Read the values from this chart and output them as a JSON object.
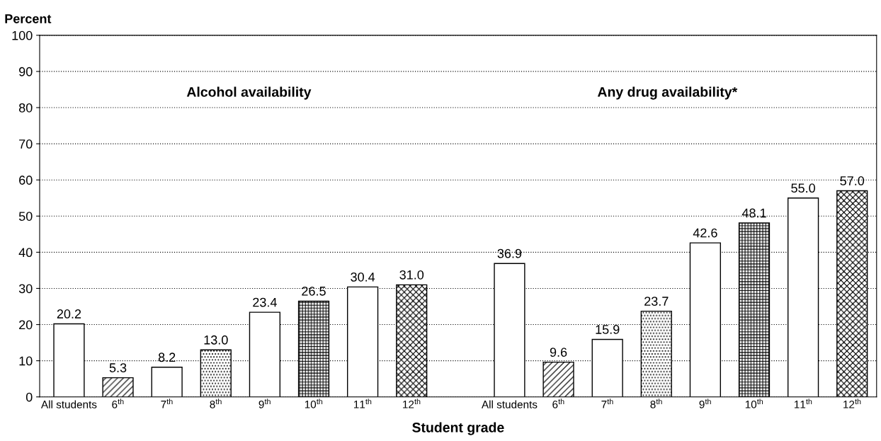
{
  "chart_data": {
    "type": "bar",
    "ylabel": "Percent",
    "xlabel": "Student grade",
    "categories": [
      "All students",
      "6$^{th}$",
      "7$^{th}$",
      "8$^{th}$",
      "9$^{th}$",
      "10$^{th}$",
      "11$^{th}$",
      "12$^{th}$",
      null,
      "All students",
      "6$^{th}$",
      "7$^{th}$",
      "8$^{th}$",
      "9$^{th}$",
      "10$^{th}$",
      "11$^{th}$",
      "12$^{th}$"
    ],
    "annotations": [
      "Alcohol availability",
      "Any drug availability*"
    ],
    "series": [
      {
        "colors": [
          "#ffffff",
          "#000000",
          "#ffffff",
          "#000000",
          "#ffffff",
          "#000000",
          "#ffffff",
          "#000000",
          null,
          null,
          null,
          null,
          null,
          null,
          null,
          null,
          null
        ],
        "values": [
          20.2,
          5.3,
          8.2,
          13.0,
          23.4,
          26.5,
          30.4,
          31.0,
          null,
          null,
          null,
          null,
          null,
          null,
          null,
          null,
          null
        ],
        "value_labels": [
          "20.2",
          "5.3",
          "8.2",
          "13.0",
          "23.4",
          "26.5",
          "30.4",
          "31.0",
          null,
          null,
          null,
          null,
          null,
          null,
          null,
          null,
          null
        ]
      },
      {
        "colors": [
          null,
          null,
          null,
          null,
          null,
          null,
          null,
          null,
          null,
          "#ffffff",
          "#000000",
          "#ffffff",
          "#000000",
          "#ffffff",
          "#000000",
          "#ffffff",
          "#000000"
        ],
        "values": [
          null,
          null,
          null,
          null,
          null,
          null,
          null,
          null,
          null,
          36.9,
          9.6,
          15.9,
          23.7,
          42.6,
          48.1,
          55.0,
          57.0
        ],
        "value_labels": [
          null,
          null,
          null,
          null,
          null,
          null,
          null,
          null,
          null,
          "36.9",
          "9.6",
          "15.9",
          "23.7",
          "42.6",
          "48.1",
          "55.0",
          "57.0"
        ]
      }
    ],
    "ylim": [
      0,
      100
    ],
    "yticks": [
      0,
      10,
      20,
      30,
      40,
      50,
      60,
      70,
      80,
      90,
      100
    ],
    "grid": "y"
  }
}
